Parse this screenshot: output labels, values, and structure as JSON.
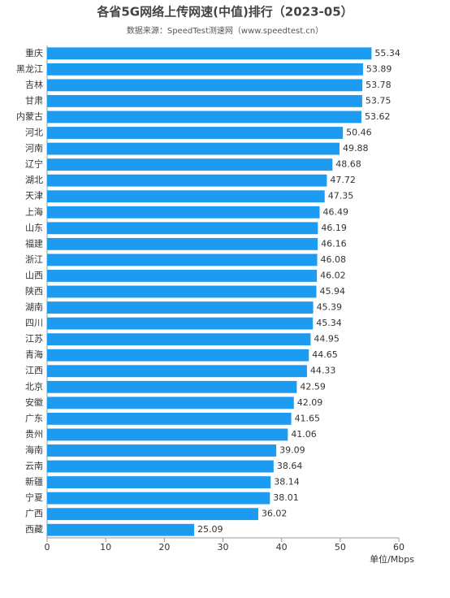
{
  "chart_data": {
    "type": "bar",
    "orientation": "horizontal",
    "title": "各省5G网络上传网速(中值)排行（2023-05）",
    "subtitle": "数据来源：SpeedTest测速网（www.speedtest.cn）",
    "x_label": "单位/Mbps",
    "categories": [
      "重庆",
      "黑龙江",
      "吉林",
      "甘肃",
      "内蒙古",
      "河北",
      "河南",
      "辽宁",
      "湖北",
      "天津",
      "上海",
      "山东",
      "福建",
      "浙江",
      "山西",
      "陕西",
      "湖南",
      "四川",
      "江苏",
      "青海",
      "江西",
      "北京",
      "安徽",
      "广东",
      "贵州",
      "海南",
      "云南",
      "新疆",
      "宁夏",
      "广西",
      "西藏"
    ],
    "values": [
      55.34,
      53.89,
      53.78,
      53.75,
      53.62,
      50.46,
      49.88,
      48.68,
      47.72,
      47.35,
      46.49,
      46.19,
      46.16,
      46.08,
      46.02,
      45.94,
      45.39,
      45.34,
      44.95,
      44.65,
      44.33,
      42.59,
      42.09,
      41.65,
      41.06,
      39.09,
      38.64,
      38.14,
      38.01,
      36.02,
      25.09
    ],
    "color": "#1d9bf0",
    "xlim": [
      0,
      60
    ],
    "xticks": [
      0,
      10,
      20,
      30,
      40,
      50,
      60
    ],
    "grid": false
  }
}
